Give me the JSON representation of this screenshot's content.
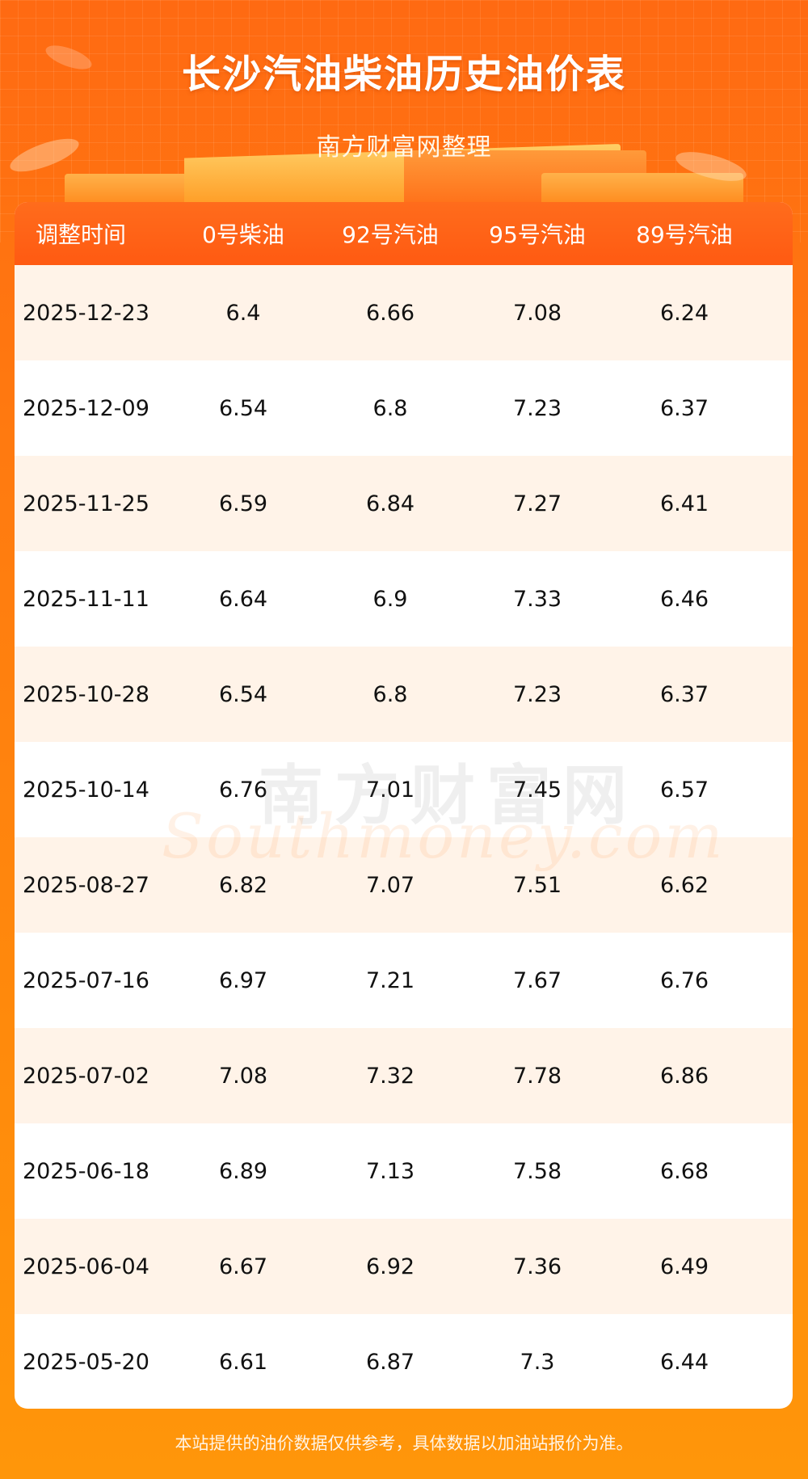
{
  "header": {
    "title": "长沙汽油柴油历史油价表",
    "subtitle": "南方财富网整理"
  },
  "table": {
    "columns": [
      "调整时间",
      "0号柴油",
      "92号汽油",
      "95号汽油",
      "89号汽油"
    ],
    "rows": [
      [
        "2025-12-23",
        "6.4",
        "6.66",
        "7.08",
        "6.24"
      ],
      [
        "2025-12-09",
        "6.54",
        "6.8",
        "7.23",
        "6.37"
      ],
      [
        "2025-11-25",
        "6.59",
        "6.84",
        "7.27",
        "6.41"
      ],
      [
        "2025-11-11",
        "6.64",
        "6.9",
        "7.33",
        "6.46"
      ],
      [
        "2025-10-28",
        "6.54",
        "6.8",
        "7.23",
        "6.37"
      ],
      [
        "2025-10-14",
        "6.76",
        "7.01",
        "7.45",
        "6.57"
      ],
      [
        "2025-08-27",
        "6.82",
        "7.07",
        "7.51",
        "6.62"
      ],
      [
        "2025-07-16",
        "6.97",
        "7.21",
        "7.67",
        "6.76"
      ],
      [
        "2025-07-02",
        "7.08",
        "7.32",
        "7.78",
        "6.86"
      ],
      [
        "2025-06-18",
        "6.89",
        "7.13",
        "7.58",
        "6.68"
      ],
      [
        "2025-06-04",
        "6.67",
        "6.92",
        "7.36",
        "6.49"
      ],
      [
        "2025-05-20",
        "6.61",
        "6.87",
        "7.3",
        "6.44"
      ]
    ]
  },
  "watermark": {
    "cn": "南方财富网",
    "en": "Southmoney.com"
  },
  "footer": {
    "note": "本站提供的油价数据仅供参考，具体数据以加油站报价为准。"
  },
  "colors": {
    "header_bg": "#ff5a12",
    "alt_row": "#fff3e8",
    "page_bg": "#ff8a0c"
  }
}
